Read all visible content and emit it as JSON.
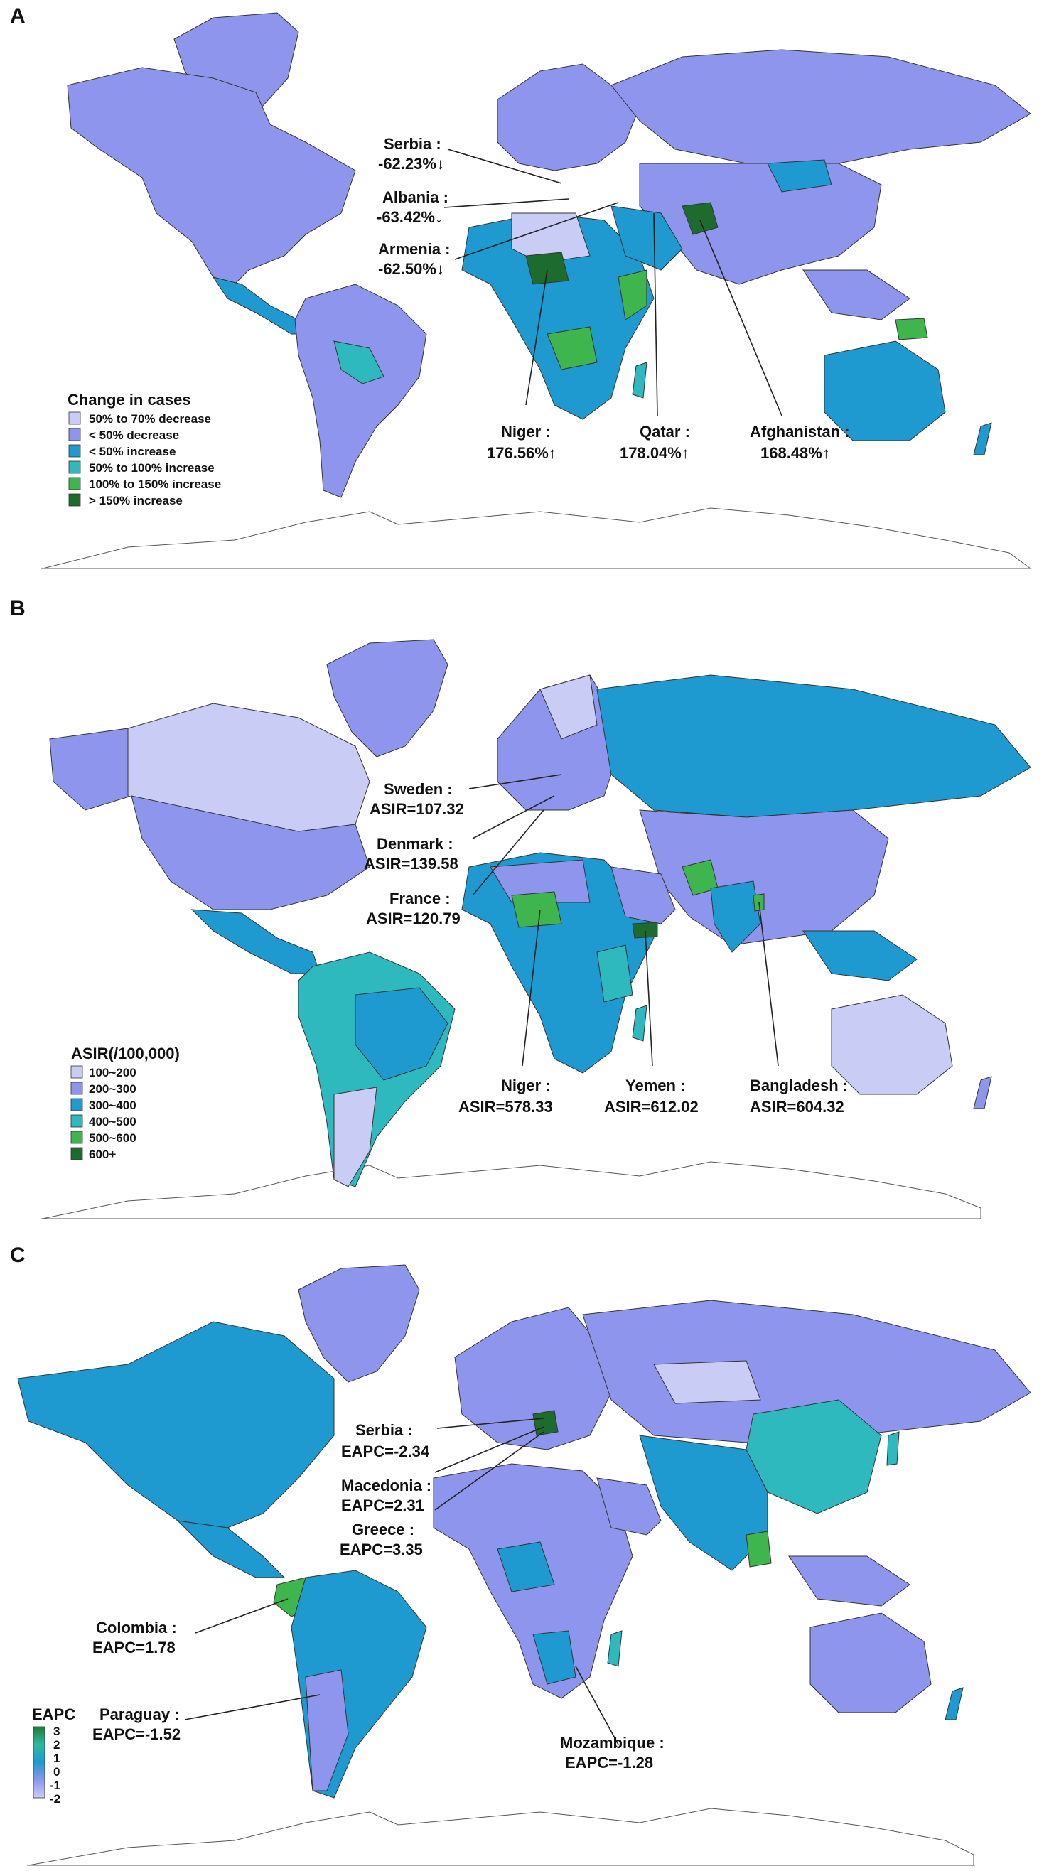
{
  "panels": [
    {
      "label": "A",
      "legend": {
        "title": "Change in cases",
        "items": [
          {
            "label": "50% to 70% decrease",
            "color": "#c9cdf6"
          },
          {
            "label": "< 50% decrease",
            "color": "#8e95ec"
          },
          {
            "label": "< 50% increase",
            "color": "#1e9ad0"
          },
          {
            "label": "50% to 100% increase",
            "color": "#2db9bd"
          },
          {
            "label": "100% to 150% increase",
            "color": "#3fb54e"
          },
          {
            "label": "> 150% increase",
            "color": "#1e6b2e"
          }
        ]
      },
      "annotations": [
        {
          "name": "Serbia",
          "line1": "Serbia :",
          "line2": "-62.23%↓"
        },
        {
          "name": "Albania",
          "line1": "Albania :",
          "line2": "-63.42%↓"
        },
        {
          "name": "Armenia",
          "line1": "Armenia :",
          "line2": "-62.50%↓"
        },
        {
          "name": "Niger",
          "line1": "Niger :",
          "line2": "176.56%↑"
        },
        {
          "name": "Qatar",
          "line1": "Qatar :",
          "line2": "178.04%↑"
        },
        {
          "name": "Afghanistan",
          "line1": "Afghanistan :",
          "line2": "168.48%↑"
        }
      ]
    },
    {
      "label": "B",
      "legend": {
        "title": "ASIR(/100,000)",
        "items": [
          {
            "label": "100~200",
            "color": "#c9cdf6"
          },
          {
            "label": "200~300",
            "color": "#8e95ec"
          },
          {
            "label": "300~400",
            "color": "#1e9ad0"
          },
          {
            "label": "400~500",
            "color": "#2db9bd"
          },
          {
            "label": "500~600",
            "color": "#3fb54e"
          },
          {
            "label": "600+",
            "color": "#1e6b2e"
          }
        ]
      },
      "annotations": [
        {
          "name": "Sweden",
          "line1": "Sweden :",
          "line2": "ASIR=107.32"
        },
        {
          "name": "Denmark",
          "line1": "Denmark :",
          "line2": "ASIR=139.58"
        },
        {
          "name": "France",
          "line1": "France :",
          "line2": "ASIR=120.79"
        },
        {
          "name": "Niger",
          "line1": "Niger :",
          "line2": "ASIR=578.33"
        },
        {
          "name": "Yemen",
          "line1": "Yemen :",
          "line2": "ASIR=612.02"
        },
        {
          "name": "Bangladesh",
          "line1": "Bangladesh :",
          "line2": "ASIR=604.32"
        }
      ]
    },
    {
      "label": "C",
      "legend": {
        "title": "EAPC",
        "ticks": [
          "3",
          "2",
          "1",
          "0",
          "-1",
          "-2"
        ],
        "gradient": [
          "#1e7a3a",
          "#2db9a0",
          "#1e9ad0",
          "#8e95ec",
          "#c9cdf6"
        ]
      },
      "annotations": [
        {
          "name": "Serbia",
          "line1": "Serbia :",
          "line2": "EAPC=-2.34"
        },
        {
          "name": "Macedonia",
          "line1": "Macedonia :",
          "line2": "EAPC=2.31"
        },
        {
          "name": "Greece",
          "line1": "Greece :",
          "line2": "EAPC=3.35"
        },
        {
          "name": "Colombia",
          "line1": "Colombia :",
          "line2": "EAPC=1.78"
        },
        {
          "name": "Paraguay",
          "line1": "Paraguay :",
          "line2": "EAPC=-1.52"
        },
        {
          "name": "Mozambique",
          "line1": "Mozambique :",
          "line2": "EAPC=-1.28"
        }
      ]
    }
  ]
}
